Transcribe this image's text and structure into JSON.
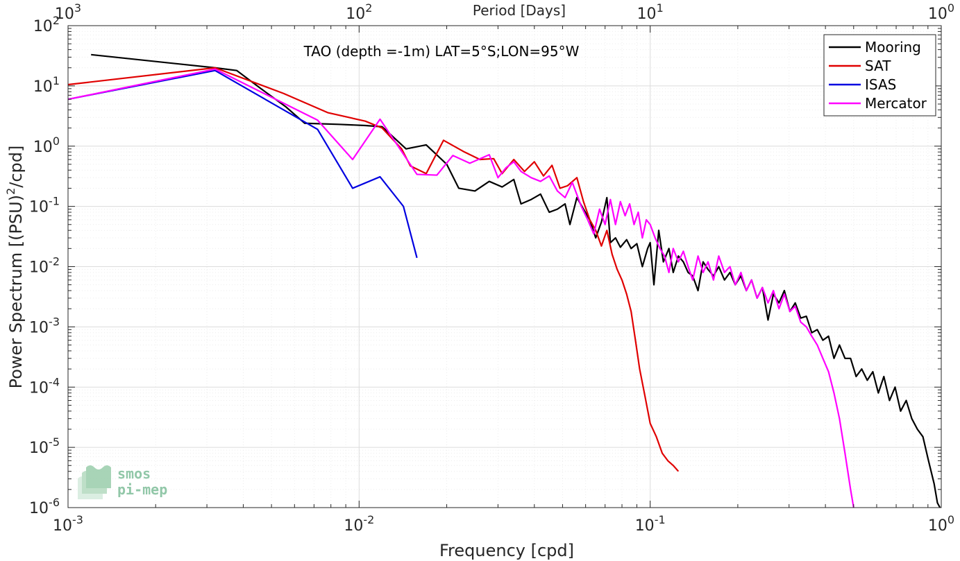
{
  "chart_data": {
    "type": "line",
    "title": "TAO (depth =-1m) LAT=5°S;LON=95°W",
    "xlabel": "Frequency [cpd]",
    "ylabel": "Power Spectrum [(PSU)^2/cpd]",
    "ylabel_parts": {
      "main": "Power Spectrum [(PSU)",
      "sup": "2",
      "tail": "/cpd]"
    },
    "top_xlabel": "Period [Days]",
    "x_scale": "log",
    "y_scale": "log",
    "xlim": [
      0.001,
      1
    ],
    "ylim": [
      1e-06,
      100
    ],
    "grid": true,
    "minor_grid": true,
    "legend_position": "top-right",
    "x_ticks": [
      {
        "value": 0.001,
        "base": "10",
        "exp": "-3"
      },
      {
        "value": 0.01,
        "base": "10",
        "exp": "-2"
      },
      {
        "value": 0.1,
        "base": "10",
        "exp": "-1"
      },
      {
        "value": 1,
        "base": "10",
        "exp": "0"
      }
    ],
    "top_ticks": [
      {
        "value": 1000,
        "base": "10",
        "exp": "3"
      },
      {
        "value": 100,
        "base": "10",
        "exp": "2"
      },
      {
        "value": 10,
        "base": "10",
        "exp": "1"
      },
      {
        "value": 1,
        "base": "10",
        "exp": "0"
      }
    ],
    "y_ticks": [
      {
        "value": 1e-06,
        "base": "10",
        "exp": "-6"
      },
      {
        "value": 1e-05,
        "base": "10",
        "exp": "-5"
      },
      {
        "value": 0.0001,
        "base": "10",
        "exp": "-4"
      },
      {
        "value": 0.001,
        "base": "10",
        "exp": "-3"
      },
      {
        "value": 0.01,
        "base": "10",
        "exp": "-2"
      },
      {
        "value": 0.1,
        "base": "10",
        "exp": "-1"
      },
      {
        "value": 1,
        "base": "10",
        "exp": "0"
      },
      {
        "value": 10,
        "base": "10",
        "exp": "1"
      },
      {
        "value": 100,
        "base": "10",
        "exp": "2"
      }
    ],
    "series": [
      {
        "name": "Mooring",
        "color": "#000000",
        "points": [
          [
            0.0012,
            33
          ],
          [
            0.0032,
            20
          ],
          [
            0.0038,
            18
          ],
          [
            0.0046,
            9
          ],
          [
            0.0056,
            4.5
          ],
          [
            0.0065,
            2.4
          ],
          [
            0.0085,
            2.3
          ],
          [
            0.0105,
            2.2
          ],
          [
            0.012,
            2.1
          ],
          [
            0.0145,
            0.9
          ],
          [
            0.017,
            1.05
          ],
          [
            0.02,
            0.5
          ],
          [
            0.022,
            0.2
          ],
          [
            0.025,
            0.18
          ],
          [
            0.028,
            0.26
          ],
          [
            0.031,
            0.21
          ],
          [
            0.034,
            0.28
          ],
          [
            0.036,
            0.11
          ],
          [
            0.039,
            0.13
          ],
          [
            0.042,
            0.16
          ],
          [
            0.045,
            0.08
          ],
          [
            0.048,
            0.09
          ],
          [
            0.051,
            0.11
          ],
          [
            0.053,
            0.05
          ],
          [
            0.056,
            0.14
          ],
          [
            0.059,
            0.09
          ],
          [
            0.062,
            0.06
          ],
          [
            0.065,
            0.03
          ],
          [
            0.068,
            0.055
          ],
          [
            0.071,
            0.14
          ],
          [
            0.073,
            0.025
          ],
          [
            0.076,
            0.03
          ],
          [
            0.079,
            0.021
          ],
          [
            0.083,
            0.028
          ],
          [
            0.086,
            0.02
          ],
          [
            0.09,
            0.024
          ],
          [
            0.094,
            0.01
          ],
          [
            0.098,
            0.02
          ],
          [
            0.1,
            0.025
          ],
          [
            0.103,
            0.005
          ],
          [
            0.107,
            0.04
          ],
          [
            0.111,
            0.012
          ],
          [
            0.116,
            0.02
          ],
          [
            0.12,
            0.008
          ],
          [
            0.125,
            0.015
          ],
          [
            0.13,
            0.012
          ],
          [
            0.135,
            0.008
          ],
          [
            0.14,
            0.007
          ],
          [
            0.146,
            0.004
          ],
          [
            0.152,
            0.012
          ],
          [
            0.158,
            0.009
          ],
          [
            0.165,
            0.007
          ],
          [
            0.172,
            0.01
          ],
          [
            0.18,
            0.006
          ],
          [
            0.188,
            0.008
          ],
          [
            0.196,
            0.005
          ],
          [
            0.205,
            0.007
          ],
          [
            0.214,
            0.004
          ],
          [
            0.223,
            0.006
          ],
          [
            0.233,
            0.003
          ],
          [
            0.243,
            0.0045
          ],
          [
            0.254,
            0.0013
          ],
          [
            0.265,
            0.0035
          ],
          [
            0.277,
            0.0025
          ],
          [
            0.289,
            0.004
          ],
          [
            0.302,
            0.0018
          ],
          [
            0.315,
            0.0025
          ],
          [
            0.329,
            0.0014
          ],
          [
            0.344,
            0.0015
          ],
          [
            0.359,
            0.0008
          ],
          [
            0.375,
            0.0009
          ],
          [
            0.392,
            0.0006
          ],
          [
            0.41,
            0.0007
          ],
          [
            0.428,
            0.0003
          ],
          [
            0.447,
            0.0005
          ],
          [
            0.467,
            0.0003
          ],
          [
            0.488,
            0.0003
          ],
          [
            0.51,
            0.00015
          ],
          [
            0.533,
            0.0002
          ],
          [
            0.557,
            0.00013
          ],
          [
            0.582,
            0.00018
          ],
          [
            0.608,
            8e-05
          ],
          [
            0.635,
            0.00015
          ],
          [
            0.664,
            6e-05
          ],
          [
            0.694,
            0.0001
          ],
          [
            0.725,
            4e-05
          ],
          [
            0.758,
            6e-05
          ],
          [
            0.792,
            3e-05
          ],
          [
            0.828,
            2e-05
          ],
          [
            0.865,
            1.5e-05
          ],
          [
            0.904,
            6e-06
          ],
          [
            0.945,
            2.5e-06
          ],
          [
            0.97,
            1.2e-06
          ],
          [
            0.99,
            1e-06
          ]
        ]
      },
      {
        "name": "SAT",
        "color": "#e00000",
        "points": [
          [
            0.001,
            10.5
          ],
          [
            0.0032,
            20
          ],
          [
            0.0055,
            7.5
          ],
          [
            0.0078,
            3.6
          ],
          [
            0.0105,
            2.6
          ],
          [
            0.012,
            2.0
          ],
          [
            0.014,
            0.9
          ],
          [
            0.015,
            0.47
          ],
          [
            0.017,
            0.35
          ],
          [
            0.0195,
            1.25
          ],
          [
            0.023,
            0.8
          ],
          [
            0.026,
            0.6
          ],
          [
            0.029,
            0.62
          ],
          [
            0.031,
            0.35
          ],
          [
            0.034,
            0.6
          ],
          [
            0.037,
            0.38
          ],
          [
            0.04,
            0.55
          ],
          [
            0.043,
            0.32
          ],
          [
            0.046,
            0.48
          ],
          [
            0.049,
            0.2
          ],
          [
            0.052,
            0.22
          ],
          [
            0.056,
            0.3
          ],
          [
            0.059,
            0.12
          ],
          [
            0.062,
            0.06
          ],
          [
            0.065,
            0.04
          ],
          [
            0.068,
            0.022
          ],
          [
            0.071,
            0.04
          ],
          [
            0.074,
            0.016
          ],
          [
            0.077,
            0.009
          ],
          [
            0.08,
            0.006
          ],
          [
            0.083,
            0.0035
          ],
          [
            0.086,
            0.0018
          ],
          [
            0.089,
            0.0006
          ],
          [
            0.092,
            0.0002
          ],
          [
            0.096,
            7e-05
          ],
          [
            0.1,
            2.5e-05
          ],
          [
            0.105,
            1.5e-05
          ],
          [
            0.11,
            8e-06
          ],
          [
            0.115,
            6e-06
          ],
          [
            0.12,
            5e-06
          ],
          [
            0.125,
            4e-06
          ]
        ]
      },
      {
        "name": "ISAS",
        "color": "#0000e0",
        "points": [
          [
            0.001,
            6
          ],
          [
            0.0032,
            18
          ],
          [
            0.0072,
            1.9
          ],
          [
            0.0095,
            0.2
          ],
          [
            0.0118,
            0.31
          ],
          [
            0.0142,
            0.1
          ],
          [
            0.0158,
            0.014
          ]
        ]
      },
      {
        "name": "Mercator",
        "color": "#ff00ff",
        "points": [
          [
            0.001,
            6
          ],
          [
            0.0032,
            19
          ],
          [
            0.0072,
            2.7
          ],
          [
            0.0095,
            0.6
          ],
          [
            0.0118,
            2.8
          ],
          [
            0.0158,
            0.34
          ],
          [
            0.0185,
            0.33
          ],
          [
            0.021,
            0.7
          ],
          [
            0.024,
            0.52
          ],
          [
            0.028,
            0.72
          ],
          [
            0.03,
            0.3
          ],
          [
            0.032,
            0.44
          ],
          [
            0.034,
            0.55
          ],
          [
            0.036,
            0.38
          ],
          [
            0.039,
            0.3
          ],
          [
            0.042,
            0.26
          ],
          [
            0.045,
            0.32
          ],
          [
            0.048,
            0.18
          ],
          [
            0.051,
            0.14
          ],
          [
            0.054,
            0.25
          ],
          [
            0.058,
            0.1
          ],
          [
            0.061,
            0.06
          ],
          [
            0.064,
            0.035
          ],
          [
            0.067,
            0.09
          ],
          [
            0.07,
            0.05
          ],
          [
            0.073,
            0.13
          ],
          [
            0.076,
            0.05
          ],
          [
            0.079,
            0.12
          ],
          [
            0.082,
            0.07
          ],
          [
            0.085,
            0.11
          ],
          [
            0.088,
            0.05
          ],
          [
            0.091,
            0.08
          ],
          [
            0.094,
            0.03
          ],
          [
            0.097,
            0.06
          ],
          [
            0.1,
            0.05
          ],
          [
            0.104,
            0.03
          ],
          [
            0.108,
            0.02
          ],
          [
            0.112,
            0.015
          ],
          [
            0.116,
            0.008
          ],
          [
            0.12,
            0.02
          ],
          [
            0.125,
            0.012
          ],
          [
            0.13,
            0.018
          ],
          [
            0.135,
            0.01
          ],
          [
            0.14,
            0.006
          ],
          [
            0.146,
            0.015
          ],
          [
            0.152,
            0.008
          ],
          [
            0.158,
            0.012
          ],
          [
            0.165,
            0.006
          ],
          [
            0.172,
            0.015
          ],
          [
            0.18,
            0.008
          ],
          [
            0.188,
            0.01
          ],
          [
            0.196,
            0.005
          ],
          [
            0.205,
            0.008
          ],
          [
            0.214,
            0.004
          ],
          [
            0.223,
            0.006
          ],
          [
            0.233,
            0.003
          ],
          [
            0.243,
            0.0045
          ],
          [
            0.254,
            0.0025
          ],
          [
            0.265,
            0.004
          ],
          [
            0.277,
            0.002
          ],
          [
            0.289,
            0.0035
          ],
          [
            0.302,
            0.0018
          ],
          [
            0.315,
            0.0022
          ],
          [
            0.329,
            0.0012
          ],
          [
            0.344,
            0.001
          ],
          [
            0.359,
            0.0007
          ],
          [
            0.375,
            0.0005
          ],
          [
            0.392,
            0.0003
          ],
          [
            0.41,
            0.00018
          ],
          [
            0.428,
            8e-05
          ],
          [
            0.447,
            3e-05
          ],
          [
            0.467,
            8e-06
          ],
          [
            0.488,
            2e-06
          ],
          [
            0.5,
            1e-06
          ]
        ]
      }
    ]
  },
  "logo": {
    "line1": "smos",
    "line2": "pi-mep",
    "color": "#86c29f"
  }
}
